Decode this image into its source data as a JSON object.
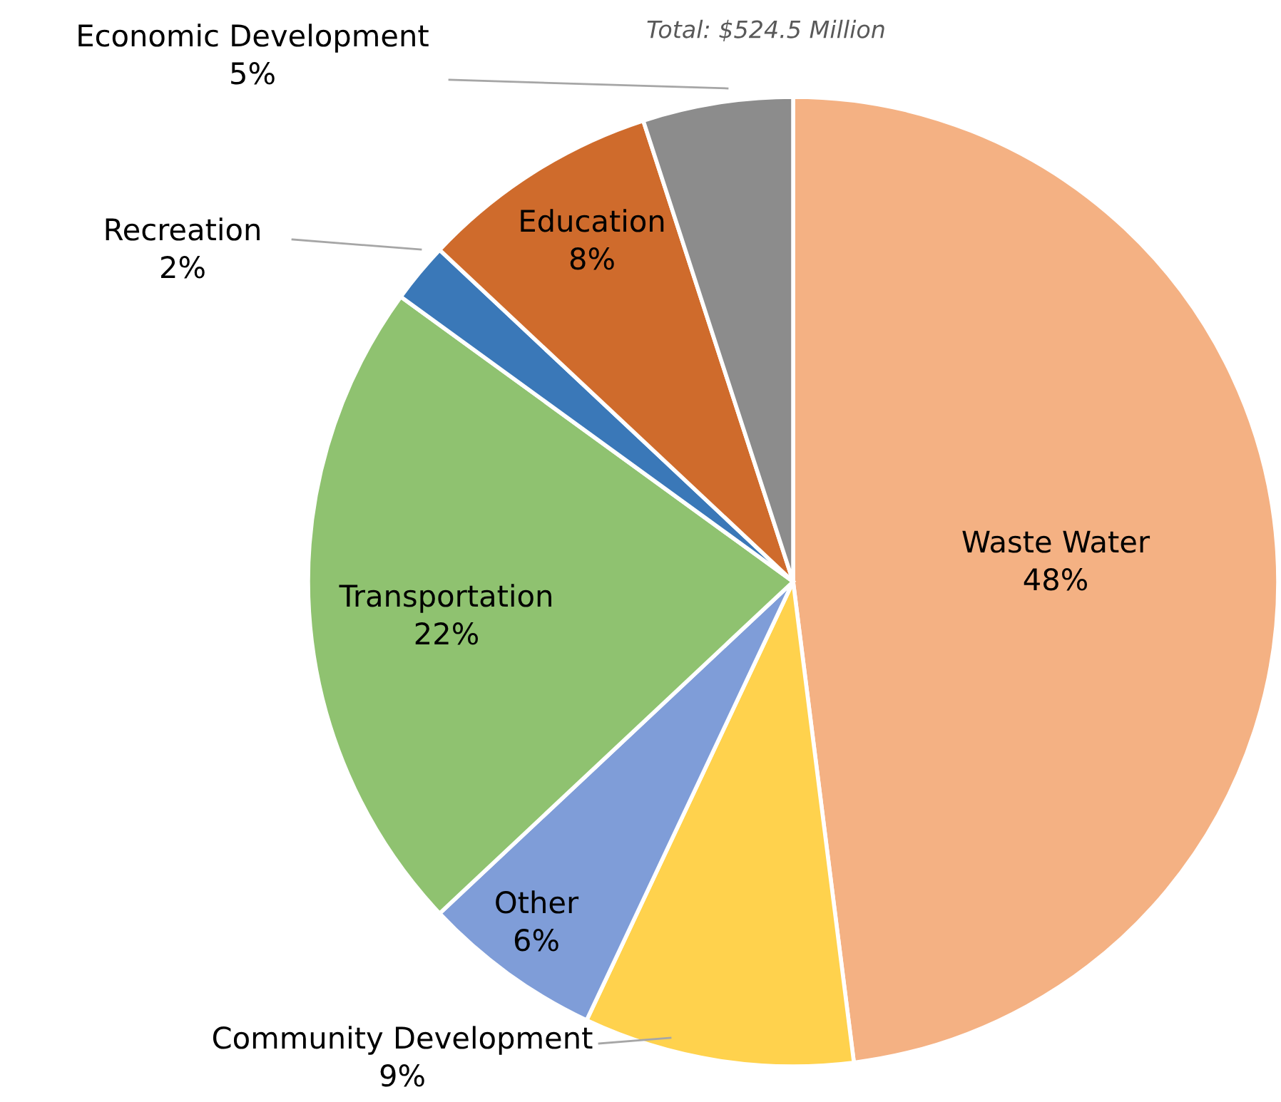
{
  "chart_data": {
    "type": "pie",
    "categories": [
      "Waste Water",
      "Community Development",
      "Other",
      "Transportation",
      "Recreation",
      "Education",
      "Economic Development"
    ],
    "values": [
      48,
      9,
      6,
      22,
      2,
      8,
      5
    ],
    "value_labels": [
      "48%",
      "9%",
      "6%",
      "22%",
      "2%",
      "8%",
      "5%"
    ],
    "colors": [
      "#f4b183",
      "#ffd24d",
      "#7f9dd8",
      "#8fc270",
      "#3a78b8",
      "#cf6b2c",
      "#8c8c8c"
    ],
    "annotations": [
      "Total: $524.5 Million"
    ],
    "legend": false
  }
}
